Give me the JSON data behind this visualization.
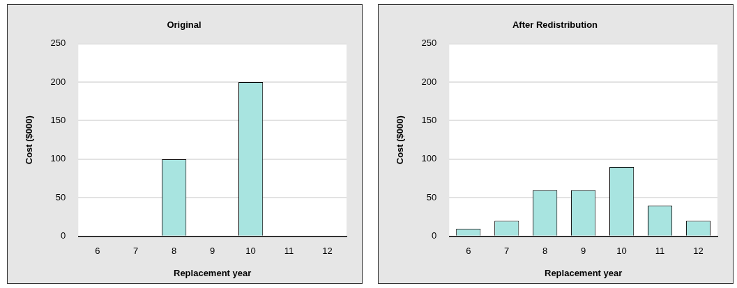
{
  "chart_data": [
    {
      "type": "bar",
      "title": "Original",
      "xlabel": "Replacement year",
      "ylabel": "Cost ($000)",
      "categories": [
        "6",
        "7",
        "8",
        "9",
        "10",
        "11",
        "12"
      ],
      "values": [
        0,
        0,
        100,
        0,
        200,
        0,
        0
      ],
      "color": "#a8e4e0",
      "ylim": [
        0,
        250
      ],
      "yticks": [
        0,
        50,
        100,
        150,
        200,
        250
      ],
      "grid": "y",
      "legend": false
    },
    {
      "type": "bar",
      "title": "After Redistribution",
      "xlabel": "Replacement year",
      "ylabel": "Cost ($000)",
      "categories": [
        "6",
        "7",
        "8",
        "9",
        "10",
        "11",
        "12"
      ],
      "values": [
        10,
        20,
        60,
        60,
        90,
        40,
        20
      ],
      "color": "#a8e4e0",
      "ylim": [
        0,
        250
      ],
      "yticks": [
        0,
        50,
        100,
        150,
        200,
        250
      ],
      "grid": "y",
      "legend": false
    }
  ]
}
